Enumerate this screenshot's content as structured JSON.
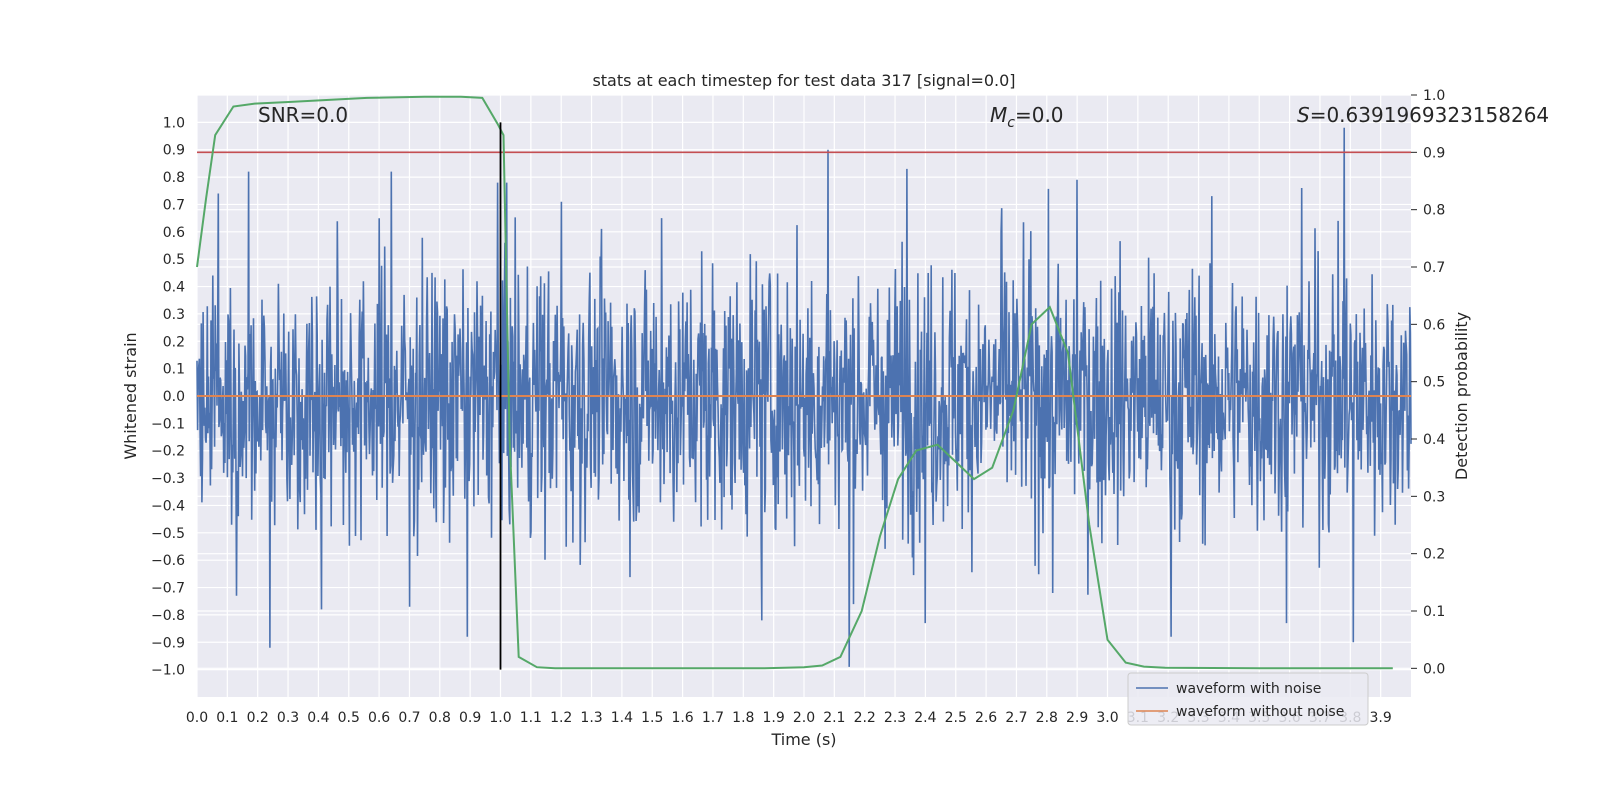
{
  "chart_data": {
    "type": "line",
    "title": "stats at each timestep for test data 317 [signal=0.0]",
    "xlabel": "Time (s)",
    "ylabel": "Whitened strain",
    "y2label": "Detection probability",
    "xlim": [
      0.0,
      4.0
    ],
    "ylim": [
      -1.1,
      1.1
    ],
    "y2lim": [
      -0.05,
      1.0
    ],
    "xticks": [
      "0.0",
      "0.1",
      "0.2",
      "0.3",
      "0.4",
      "0.5",
      "0.6",
      "0.7",
      "0.8",
      "0.9",
      "1.0",
      "1.1",
      "1.2",
      "1.3",
      "1.4",
      "1.5",
      "1.6",
      "1.7",
      "1.8",
      "1.9",
      "2.0",
      "2.1",
      "2.2",
      "2.3",
      "2.4",
      "2.5",
      "2.6",
      "2.7",
      "2.8",
      "2.9",
      "3.0",
      "3.1",
      "3.2",
      "3.3",
      "3.4",
      "3.5",
      "3.6",
      "3.7",
      "3.8",
      "3.9"
    ],
    "yticks": [
      "1.0",
      "0.9",
      "0.8",
      "0.7",
      "0.6",
      "0.5",
      "0.4",
      "0.3",
      "0.2",
      "0.1",
      "0.0",
      "-0.1",
      "-0.2",
      "-0.3",
      "-0.4",
      "-0.5",
      "-0.6",
      "-0.7",
      "-0.8",
      "-0.9",
      "-1.0"
    ],
    "y2ticks": [
      "1.0",
      "0.9",
      "0.8",
      "0.7",
      "0.6",
      "0.5",
      "0.4",
      "0.3",
      "0.2",
      "0.1",
      "0.0"
    ],
    "annotations": {
      "snr": "SNR=0.0",
      "mc_symbol": "M",
      "mc_sub": "c",
      "mc_value": "=0.0",
      "s_symbol": "S",
      "s_value": "=0.6391969323158264"
    },
    "threshold": {
      "value": 0.9,
      "axis": "y2",
      "color": "#c44e52"
    },
    "marker_line": {
      "x": 1.0,
      "y_from": -1.0,
      "y_to": 1.0,
      "color": "#000000"
    },
    "noise_envelope": {
      "description": "random whitened noise, mostly within ±0.5 with spikes",
      "spikes": [
        [
          0.07,
          0.74
        ],
        [
          0.13,
          -0.73
        ],
        [
          0.17,
          0.82
        ],
        [
          0.24,
          -0.92
        ],
        [
          0.41,
          -0.78
        ],
        [
          0.64,
          0.82
        ],
        [
          0.7,
          -0.77
        ],
        [
          0.89,
          -0.88
        ],
        [
          0.99,
          0.78
        ],
        [
          1.02,
          0.78
        ],
        [
          1.2,
          0.71
        ],
        [
          1.53,
          0.65
        ],
        [
          1.86,
          -0.82
        ],
        [
          2.08,
          0.9
        ],
        [
          2.15,
          -0.99
        ],
        [
          2.34,
          0.83
        ],
        [
          2.4,
          -0.83
        ],
        [
          2.65,
          0.6
        ],
        [
          2.82,
          -0.72
        ],
        [
          2.9,
          0.79
        ],
        [
          3.21,
          -0.88
        ],
        [
          3.59,
          -0.83
        ],
        [
          3.64,
          0.76
        ],
        [
          3.78,
          0.98
        ],
        [
          3.81,
          -0.9
        ]
      ]
    },
    "series": [
      {
        "name": "waveform with noise",
        "axis": "y",
        "color": "#4c72b0",
        "kind": "noise",
        "x_range": [
          0.0,
          4.0
        ],
        "seed": 317
      },
      {
        "name": "waveform without noise",
        "axis": "y",
        "color": "#dd8452",
        "x": [
          0.0,
          4.0
        ],
        "y": [
          0.0,
          0.0
        ]
      },
      {
        "name": "",
        "axis": "y2",
        "color": "#55a868",
        "x": [
          0.0,
          0.03,
          0.06,
          0.12,
          0.19,
          0.31,
          0.38,
          0.56,
          0.75,
          0.87,
          0.94,
          0.99,
          1.01,
          1.03,
          1.06,
          1.12,
          1.18,
          1.37,
          1.62,
          1.87,
          2.0,
          2.06,
          2.12,
          2.19,
          2.25,
          2.31,
          2.37,
          2.44,
          2.5,
          2.56,
          2.62,
          2.69,
          2.75,
          2.81,
          2.87,
          2.94,
          3.0,
          3.06,
          3.12,
          3.19,
          3.5,
          3.75,
          3.94
        ],
        "y": [
          0.7,
          0.82,
          0.93,
          0.98,
          0.985,
          0.988,
          0.99,
          0.995,
          0.997,
          0.997,
          0.995,
          0.95,
          0.93,
          0.4,
          0.02,
          0.002,
          0.0,
          0.0,
          0.0,
          0.0,
          0.002,
          0.005,
          0.02,
          0.1,
          0.23,
          0.33,
          0.38,
          0.39,
          0.36,
          0.33,
          0.35,
          0.45,
          0.6,
          0.63,
          0.55,
          0.25,
          0.05,
          0.01,
          0.003,
          0.001,
          0.0,
          0.0,
          0.0
        ]
      }
    ],
    "legend": {
      "placement": "lower-right",
      "entries": [
        {
          "label": "waveform with noise",
          "color": "#4c72b0"
        },
        {
          "label": "waveform without noise",
          "color": "#dd8452"
        }
      ]
    }
  }
}
